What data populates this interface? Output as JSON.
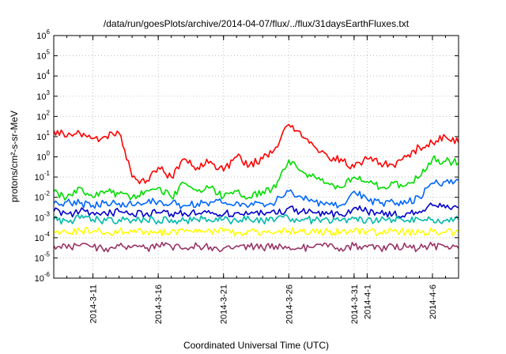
{
  "chart_data": {
    "type": "line",
    "title": "/data/run/goesPlots/archive/2014-04-07/flux/../flux/31daysEarthFluxes.txt",
    "xlabel": "Coordinated Universal Time (UTC)",
    "ylabel": "protons/cm²-s-sr-MeV",
    "yscale": "log",
    "ylim": [
      1e-06,
      1000000.0
    ],
    "ytick_labels": [
      {
        "base": "10",
        "exp": "-6"
      },
      {
        "base": "10",
        "exp": "-5"
      },
      {
        "base": "10",
        "exp": "-4"
      },
      {
        "base": "10",
        "exp": "-3"
      },
      {
        "base": "10",
        "exp": "-2"
      },
      {
        "base": "10",
        "exp": "-1"
      },
      {
        "base": "10",
        "exp": "0"
      },
      {
        "base": "10",
        "exp": "1"
      },
      {
        "base": "10",
        "exp": "2"
      },
      {
        "base": "10",
        "exp": "3"
      },
      {
        "base": "10",
        "exp": "4"
      },
      {
        "base": "10",
        "exp": "5"
      },
      {
        "base": "10",
        "exp": "6"
      }
    ],
    "xlim": [
      "2014-03-08",
      "2014-04-08"
    ],
    "xticks": [
      {
        "date": "2014-03-11",
        "label": "2014-3-11"
      },
      {
        "date": "2014-03-16",
        "label": "2014-3-16"
      },
      {
        "date": "2014-03-21",
        "label": "2014-3-21"
      },
      {
        "date": "2014-03-26",
        "label": "2014-3-26"
      },
      {
        "date": "2014-03-31",
        "label": "2014-3-31"
      },
      {
        "date": "2014-04-01",
        "label": "2014-4-1"
      },
      {
        "date": "2014-04-06",
        "label": "2014-4-6"
      }
    ],
    "grid": true,
    "legend": "none",
    "x": [
      "2014-03-08",
      "2014-03-09",
      "2014-03-10",
      "2014-03-11",
      "2014-03-12",
      "2014-03-13",
      "2014-03-14",
      "2014-03-15",
      "2014-03-16",
      "2014-03-17",
      "2014-03-18",
      "2014-03-19",
      "2014-03-20",
      "2014-03-21",
      "2014-03-22",
      "2014-03-23",
      "2014-03-24",
      "2014-03-25",
      "2014-03-26",
      "2014-03-27",
      "2014-03-28",
      "2014-03-29",
      "2014-03-30",
      "2014-03-31",
      "2014-04-01",
      "2014-04-02",
      "2014-04-03",
      "2014-04-04",
      "2014-04-05",
      "2014-04-06",
      "2014-04-07",
      "2014-04-08"
    ],
    "series": [
      {
        "color": "#ff0000",
        "values": [
          20,
          10,
          15,
          8,
          10,
          15,
          0.1,
          0.05,
          0.3,
          0.1,
          0.8,
          0.3,
          0.6,
          0.2,
          1,
          0.4,
          0.8,
          3,
          40,
          10,
          3,
          1,
          0.8,
          0.3,
          0.8,
          0.5,
          0.4,
          1,
          3,
          5,
          10,
          5
        ]
      },
      {
        "color": "#00dd00",
        "values": [
          0.02,
          0.01,
          0.03,
          0.01,
          0.02,
          0.015,
          0.01,
          0.02,
          0.03,
          0.01,
          0.05,
          0.02,
          0.03,
          0.01,
          0.02,
          0.01,
          0.02,
          0.03,
          0.7,
          0.2,
          0.1,
          0.05,
          0.03,
          0.1,
          0.06,
          0.03,
          0.05,
          0.04,
          0.1,
          0.8,
          0.6,
          0.5
        ]
      },
      {
        "color": "#0066ff",
        "values": [
          0.005,
          0.006,
          0.005,
          0.004,
          0.006,
          0.005,
          0.004,
          0.005,
          0.006,
          0.005,
          0.004,
          0.005,
          0.006,
          0.005,
          0.006,
          0.004,
          0.005,
          0.006,
          0.02,
          0.01,
          0.006,
          0.005,
          0.004,
          0.02,
          0.008,
          0.005,
          0.006,
          0.005,
          0.01,
          0.05,
          0.06,
          0.07
        ]
      },
      {
        "color": "#0000cc",
        "values": [
          0.002,
          0.0015,
          0.002,
          0.0018,
          0.0015,
          0.002,
          0.0016,
          0.0014,
          0.0018,
          0.0015,
          0.0017,
          0.0015,
          0.0016,
          0.0014,
          0.0017,
          0.0015,
          0.0016,
          0.0015,
          0.003,
          0.002,
          0.0017,
          0.0015,
          0.0014,
          0.003,
          0.002,
          0.0016,
          0.0015,
          0.0016,
          0.002,
          0.004,
          0.003,
          0.003
        ]
      },
      {
        "color": "#00bbaa",
        "values": [
          0.0008,
          0.0007,
          0.0009,
          0.0008,
          0.0007,
          0.0008,
          0.0007,
          0.0008,
          0.0007,
          0.0008,
          0.0007,
          0.0008,
          0.0007,
          0.0008,
          0.0007,
          0.0008,
          0.0007,
          0.0008,
          0.0009,
          0.0008,
          0.0007,
          0.0008,
          0.0007,
          0.0009,
          0.0008,
          0.0007,
          0.0008,
          0.0007,
          0.0008,
          0.0008,
          0.0007,
          0.0008
        ]
      },
      {
        "color": "#ffff00",
        "values": [
          0.0002,
          0.00018,
          0.00022,
          0.0002,
          0.00018,
          0.00021,
          0.00019,
          0.0002,
          0.00018,
          0.00021,
          0.0002,
          0.00019,
          0.00022,
          0.0002,
          0.00018,
          0.00021,
          0.0002,
          0.00019,
          0.00021,
          0.0002,
          0.00018,
          0.0002,
          0.00019,
          0.00022,
          0.0002,
          0.00018,
          0.00021,
          0.0002,
          0.00019,
          0.0002,
          0.00018,
          0.0002
        ]
      },
      {
        "color": "#993366",
        "values": [
          4e-05,
          3e-05,
          4e-05,
          3.5e-05,
          3e-05,
          4e-05,
          3.5e-05,
          3e-05,
          4e-05,
          3.5e-05,
          3e-05,
          4e-05,
          3.5e-05,
          3e-05,
          4e-05,
          3.5e-05,
          3e-05,
          4e-05,
          3.5e-05,
          3e-05,
          4e-05,
          3.5e-05,
          3e-05,
          4e-05,
          3.5e-05,
          3e-05,
          4e-05,
          3.5e-05,
          3e-05,
          4e-05,
          3.5e-05,
          3e-05
        ]
      }
    ]
  }
}
